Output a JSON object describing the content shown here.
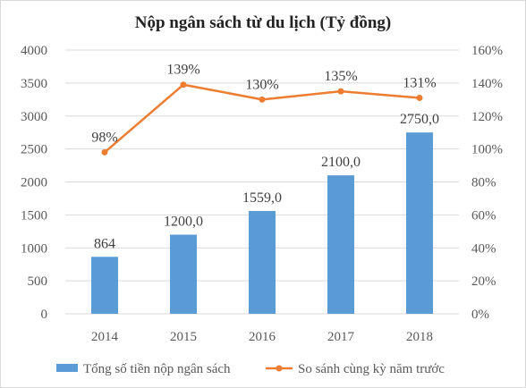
{
  "chart_data": {
    "type": "bar",
    "title": "Nộp ngân sách từ du lịch (Tỷ đồng)",
    "categories": [
      "2014",
      "2015",
      "2016",
      "2017",
      "2018"
    ],
    "y_left": {
      "ylim": [
        0,
        4000
      ],
      "ticks": [
        "0",
        "500",
        "1000",
        "1500",
        "2000",
        "2500",
        "3000",
        "3500",
        "4000"
      ]
    },
    "y_right": {
      "ylim": [
        0,
        160
      ],
      "ticks": [
        "0%",
        "20%",
        "40%",
        "60%",
        "80%",
        "100%",
        "120%",
        "140%",
        "160%"
      ]
    },
    "series": [
      {
        "name": "Tổng số tiền nộp ngân sách",
        "kind": "bar",
        "axis": "left",
        "color": "#5b9bd5",
        "values": [
          864,
          1200,
          1559,
          2100,
          2750
        ],
        "labels": [
          "864",
          "1200,0",
          "1559,0",
          "2100,0",
          "2750,0"
        ]
      },
      {
        "name": "So sánh cùng kỳ năm trước",
        "kind": "line",
        "axis": "right",
        "color": "#ed7d31",
        "values": [
          98,
          139,
          130,
          135,
          131
        ],
        "labels": [
          "98%",
          "139%",
          "130%",
          "135%",
          "131%"
        ]
      }
    ],
    "grid": true,
    "legend": "bottom"
  }
}
